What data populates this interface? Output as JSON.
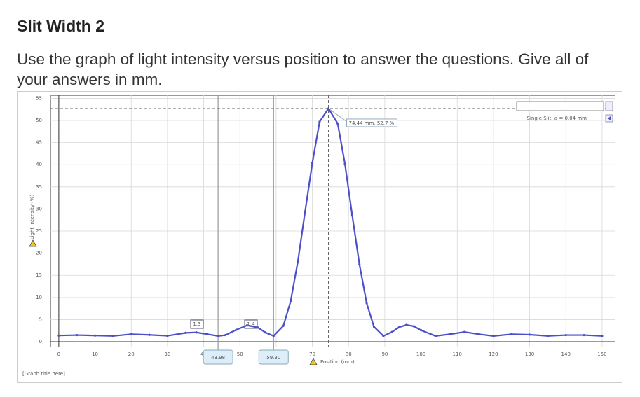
{
  "header": {
    "title": "Slit Width 2"
  },
  "instructions": "Use the graph of light intensity versus position to answer the questions. Give all of your answers in mm.",
  "chart_data": {
    "type": "line",
    "title": "[Graph title here]",
    "x_label": "Position (mm)",
    "y_label": "Light Intensity (%)",
    "x": [
      0,
      5,
      10,
      15,
      20,
      25,
      30,
      35,
      38,
      41,
      43.98,
      46,
      49,
      52,
      55,
      57,
      59.3,
      62,
      64,
      66,
      68,
      70,
      72,
      74.44,
      77,
      79,
      81,
      83,
      85,
      87,
      89.6,
      92,
      94,
      96,
      98,
      100,
      104,
      108,
      112,
      116,
      120,
      125,
      130,
      135,
      140,
      145,
      150
    ],
    "series": [
      {
        "name": "Single Slit: a = 0.04 mm",
        "color": "#4b4fc9",
        "values": [
          1.4,
          1.5,
          1.4,
          1.3,
          1.7,
          1.55,
          1.34,
          2.0,
          2.1,
          1.7,
          1.3,
          1.5,
          2.7,
          3.7,
          3.2,
          2.1,
          1.3,
          3.6,
          9.1,
          18.1,
          29.4,
          40.4,
          49.7,
          52.7,
          49.3,
          40.2,
          28.6,
          17.5,
          8.7,
          3.4,
          1.3,
          2.2,
          3.3,
          3.8,
          3.5,
          2.6,
          1.3,
          1.7,
          2.2,
          1.7,
          1.3,
          1.7,
          1.6,
          1.3,
          1.5,
          1.5,
          1.3
        ]
      }
    ],
    "xlim": [
      -2.3,
      153.5
    ],
    "ylim": [
      -1.1,
      55.7
    ],
    "xticks": [
      0,
      10,
      20,
      30,
      40,
      50,
      60,
      70,
      80,
      90,
      100,
      110,
      120,
      130,
      140,
      150
    ],
    "yticks": [
      0,
      5,
      10,
      15,
      20,
      25,
      30,
      35,
      40,
      45,
      50,
      55
    ],
    "grid": true,
    "cursors": [
      {
        "value": 43.98,
        "label": "43.98"
      },
      {
        "value": 59.3,
        "label": "59.30"
      }
    ],
    "peak": {
      "x": 74.44,
      "y": 52.7,
      "label": "74.44 mm, 52.7 %"
    },
    "annotations": [
      "1.3",
      "1.4"
    ],
    "legend": "top-right"
  }
}
